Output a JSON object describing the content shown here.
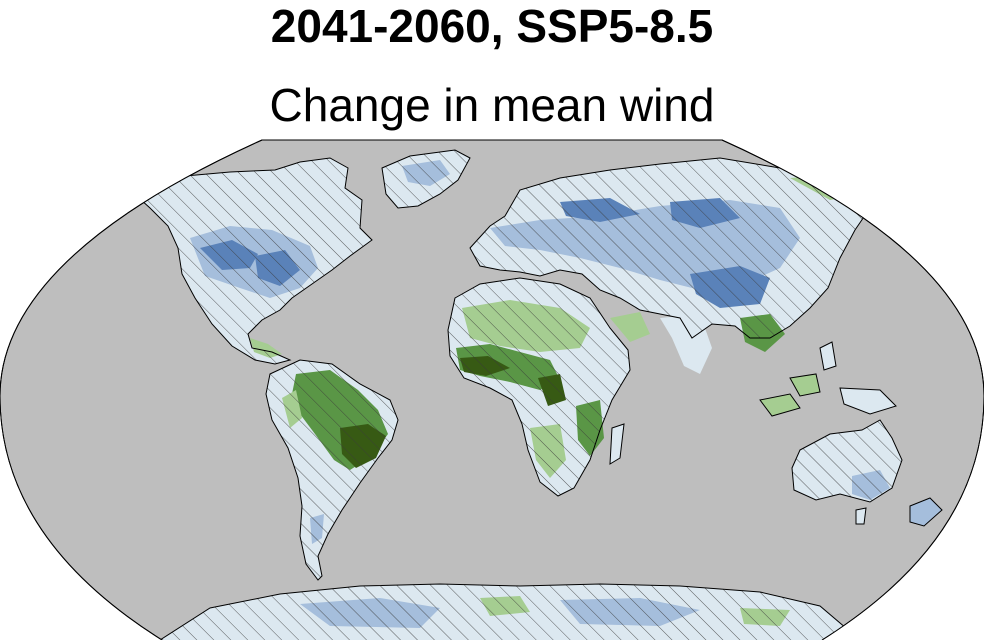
{
  "figure": {
    "title": "2041-2060, SSP5-8.5",
    "subtitle": "Change in mean wind"
  },
  "map": {
    "projection": "robinson",
    "ocean_color": "#bebebe",
    "hatching": "diagonal",
    "palette": {
      "strong_decrease": "#3c64a0",
      "decrease": "#5a82b9",
      "slight_decrease": "#a5bedc",
      "near_zero": "#dce8f0",
      "slight_increase": "#a5cd91",
      "increase": "#5a9646",
      "strong_increase": "#375a14"
    }
  }
}
